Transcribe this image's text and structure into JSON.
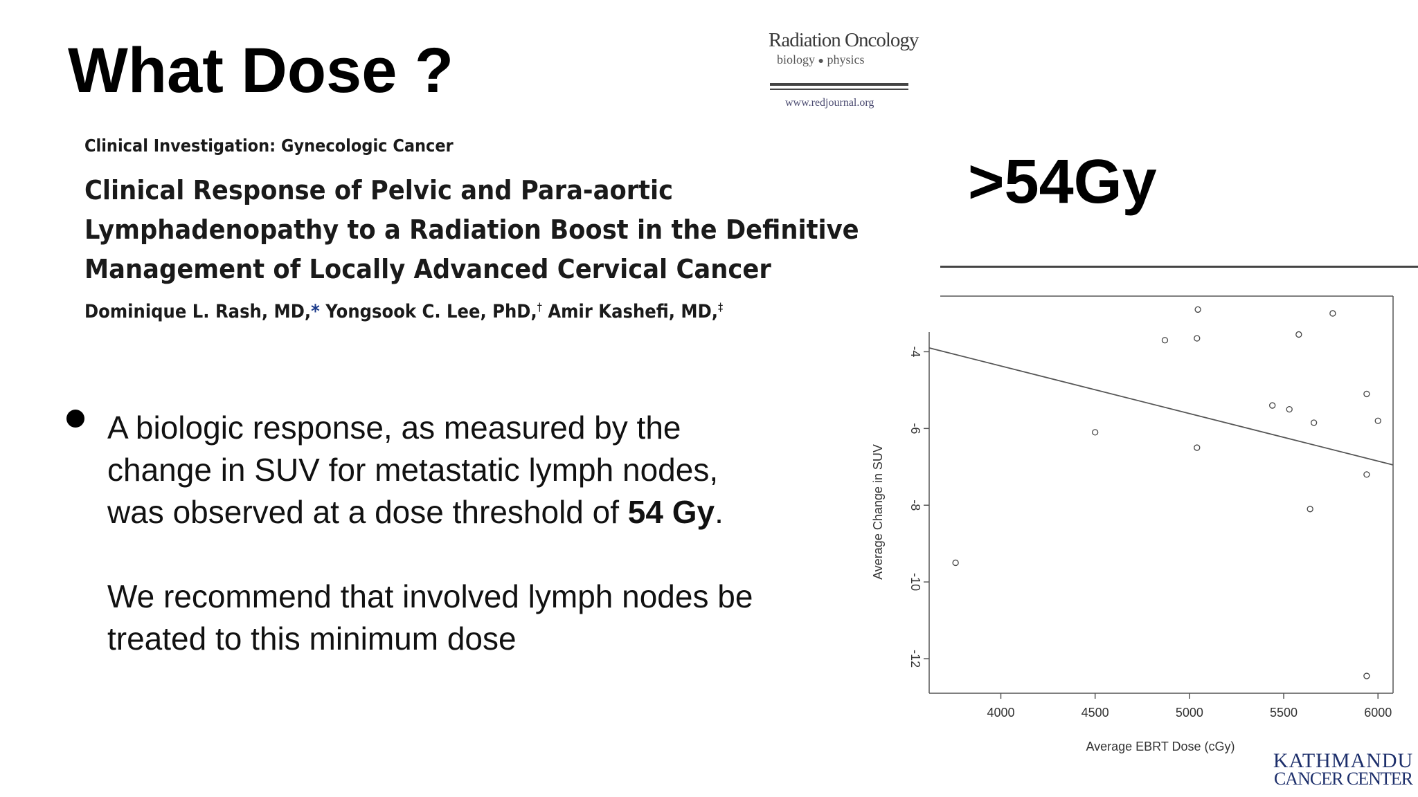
{
  "slide": {
    "title": "What Dose ?",
    "dose_callout": ">54Gy"
  },
  "journal": {
    "name": "Radiation Oncology",
    "subtitle_left": "biology",
    "subtitle_right": "physics",
    "url": "www.redjournal.org"
  },
  "paper": {
    "section": "Clinical Investigation: Gynecologic Cancer",
    "title_lines": [
      "Clinical Response of Pelvic and Para-aortic",
      "Lymphadenopathy to a Radiation Boost in the Definitive",
      "Management of Locally Advanced Cervical Cancer"
    ],
    "authors": [
      {
        "name": "Dominique L. Rash, MD,",
        "mark": "*"
      },
      {
        "name": "Yongsook C. Lee, PhD,",
        "mark": "†"
      },
      {
        "name": "Amir Kashefi, MD,",
        "mark": "‡"
      }
    ]
  },
  "bullet": {
    "line1": "A biologic response, as measured by the",
    "line2": "change in SUV for metastatic lymph nodes,",
    "line3_prefix": "was observed at a dose threshold of ",
    "line3_bold": "54 Gy",
    "line3_suffix": ".",
    "rec_line1": "We recommend that involved lymph nodes be",
    "rec_line2": "treated to this minimum dose"
  },
  "chart_data": {
    "type": "scatter",
    "xlabel": "Average EBRT Dose (cGy)",
    "ylabel": "Average Change in SUV",
    "xlim": [
      3620,
      6080
    ],
    "ylim": [
      -12.9,
      -2.55
    ],
    "x_ticks": [
      4000,
      4500,
      5000,
      5500,
      6000
    ],
    "y_ticks": [
      -4,
      -6,
      -8,
      -10,
      -12
    ],
    "x_tick_labels": [
      "4000",
      "4500",
      "5000",
      "5500",
      "6000"
    ],
    "y_tick_labels": [
      "-4",
      "-6",
      "-8",
      "-10",
      "-12"
    ],
    "points": [
      {
        "x": 3760,
        "y": -9.5
      },
      {
        "x": 4500,
        "y": -6.1
      },
      {
        "x": 4870,
        "y": -3.7
      },
      {
        "x": 5040,
        "y": -3.65
      },
      {
        "x": 5040,
        "y": -6.5
      },
      {
        "x": 5045,
        "y": -2.9
      },
      {
        "x": 5440,
        "y": -5.4
      },
      {
        "x": 5530,
        "y": -5.5
      },
      {
        "x": 5580,
        "y": -3.55
      },
      {
        "x": 5640,
        "y": -8.1
      },
      {
        "x": 5660,
        "y": -5.85
      },
      {
        "x": 5760,
        "y": -3.0
      },
      {
        "x": 5940,
        "y": -5.1
      },
      {
        "x": 5940,
        "y": -7.2
      },
      {
        "x": 5940,
        "y": -12.45
      },
      {
        "x": 6000,
        "y": -5.8
      }
    ],
    "trend_line": [
      {
        "x": 3620,
        "y": -3.9
      },
      {
        "x": 6080,
        "y": -6.95
      }
    ]
  },
  "footer": {
    "logo_line1": "KATHMANDU",
    "logo_line2": "CANCER CENTER"
  }
}
